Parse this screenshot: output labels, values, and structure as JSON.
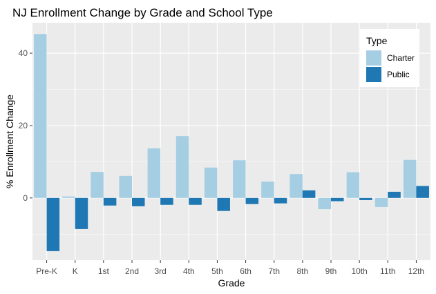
{
  "chart_data": {
    "type": "bar",
    "title": "NJ Enrollment Change by Grade and School Type",
    "xlabel": "Grade",
    "ylabel": "% Enrollment Change",
    "categories": [
      "Pre-K",
      "K",
      "1st",
      "2nd",
      "3rd",
      "4th",
      "5th",
      "6th",
      "7th",
      "8th",
      "9th",
      "10th",
      "11th",
      "12th"
    ],
    "series": [
      {
        "name": "Charter",
        "color": "#a6cee3",
        "values": [
          45.3,
          0.4,
          7.2,
          6.1,
          13.7,
          17.1,
          8.4,
          10.4,
          4.5,
          6.6,
          -3.1,
          7.1,
          -2.5,
          10.5
        ]
      },
      {
        "name": "Public",
        "color": "#1f78b4",
        "values": [
          -14.7,
          -8.6,
          -2.1,
          -2.3,
          -1.9,
          -1.9,
          -3.6,
          -1.7,
          -1.5,
          2.1,
          -0.9,
          -0.6,
          1.7,
          3.3
        ]
      }
    ],
    "ylim": [
      -17.2,
      48.4
    ],
    "yticks": [
      0,
      20,
      40
    ],
    "grid": true,
    "panel_color": "#ebebeb",
    "legend": {
      "title": "Type",
      "position": "top-right"
    }
  }
}
